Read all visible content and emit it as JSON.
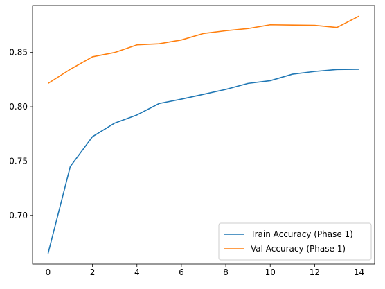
{
  "chart_data": {
    "type": "line",
    "title": "",
    "xlabel": "",
    "ylabel": "",
    "xlim": [
      -0.7,
      14.7
    ],
    "ylim": [
      0.6552,
      0.8932
    ],
    "grid": false,
    "legend_position": "lower-right",
    "x_ticks": [
      0,
      2,
      4,
      6,
      8,
      10,
      12,
      14
    ],
    "y_ticks": [
      0.7,
      0.75,
      0.8,
      0.85
    ],
    "x_tick_labels": [
      "0",
      "2",
      "4",
      "6",
      "8",
      "10",
      "12",
      "14"
    ],
    "y_tick_labels": [
      "0.70",
      "0.75",
      "0.80",
      "0.85"
    ],
    "x": [
      0,
      1,
      2,
      3,
      4,
      5,
      6,
      7,
      8,
      9,
      10,
      11,
      12,
      13,
      14
    ],
    "series": [
      {
        "name": "Train Accuracy (Phase 1)",
        "color": "#1f77b4",
        "values": [
          0.665,
          0.745,
          0.7725,
          0.785,
          0.7925,
          0.803,
          0.807,
          0.8115,
          0.816,
          0.8215,
          0.824,
          0.83,
          0.8325,
          0.8343,
          0.8345
        ]
      },
      {
        "name": "Val Accuracy (Phase 1)",
        "color": "#ff7f0e",
        "values": [
          0.8215,
          0.8345,
          0.846,
          0.85,
          0.857,
          0.858,
          0.8615,
          0.8675,
          0.87,
          0.872,
          0.8755,
          0.8752,
          0.875,
          0.873,
          0.8835
        ]
      }
    ]
  }
}
